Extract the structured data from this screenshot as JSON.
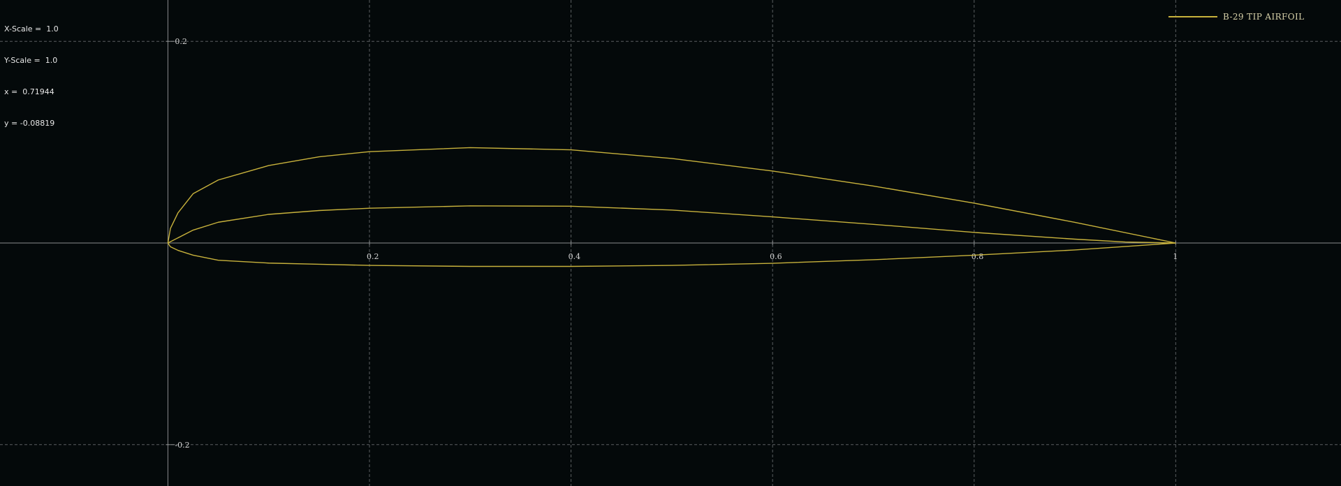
{
  "readout": {
    "x_scale_label": "X-Scale =",
    "x_scale_value": "1.0",
    "y_scale_label": "Y-Scale =",
    "y_scale_value": "1.0",
    "x_label": "x =",
    "x_value": "0.71944",
    "y_label": "y =",
    "y_value": "-0.08819"
  },
  "colors": {
    "background": "#04090a",
    "grid": "#5a5e60",
    "axis": "#8a8d8e",
    "series": "#c8b23c",
    "tick_text": "#d6d6d6"
  },
  "chart_data": {
    "type": "line",
    "title": "",
    "xlabel": "",
    "ylabel": "",
    "xlim": [
      -0.1666,
      1.164
    ],
    "ylim": [
      -0.241,
      0.241
    ],
    "grid": true,
    "legend_position": "top-right",
    "x_ticks": [
      {
        "value": 0.2,
        "label": "0.2"
      },
      {
        "value": 0.4,
        "label": "0.4"
      },
      {
        "value": 0.6,
        "label": "0.6"
      },
      {
        "value": 0.8,
        "label": "0.8"
      },
      {
        "value": 1.0,
        "label": "1"
      }
    ],
    "y_ticks": [
      {
        "value": 0.2,
        "label": "0.2"
      },
      {
        "value": -0.2,
        "label": "-0.2"
      }
    ],
    "series": [
      {
        "name": "B-29 TIP AIRFOIL",
        "color": "#c8b23c",
        "upper": [
          [
            1.0,
            0.0
          ],
          [
            0.9,
            0.0205
          ],
          [
            0.8,
            0.0395
          ],
          [
            0.7,
            0.0565
          ],
          [
            0.6,
            0.0714
          ],
          [
            0.5,
            0.0838
          ],
          [
            0.4,
            0.0924
          ],
          [
            0.3,
            0.0946
          ],
          [
            0.2,
            0.0906
          ],
          [
            0.15,
            0.0855
          ],
          [
            0.1,
            0.0768
          ],
          [
            0.05,
            0.0625
          ],
          [
            0.025,
            0.0489
          ],
          [
            0.01,
            0.0299
          ],
          [
            0.0025,
            0.0144
          ],
          [
            0.0,
            0.0
          ]
        ],
        "lower": [
          [
            0.0,
            0.0
          ],
          [
            0.0025,
            -0.0037
          ],
          [
            0.01,
            -0.0073
          ],
          [
            0.025,
            -0.0121
          ],
          [
            0.05,
            -0.0171
          ],
          [
            0.1,
            -0.0199
          ],
          [
            0.15,
            -0.0211
          ],
          [
            0.2,
            -0.0222
          ],
          [
            0.3,
            -0.0232
          ],
          [
            0.4,
            -0.0232
          ],
          [
            0.5,
            -0.0222
          ],
          [
            0.6,
            -0.0201
          ],
          [
            0.7,
            -0.0166
          ],
          [
            0.8,
            -0.0121
          ],
          [
            0.9,
            -0.0069
          ],
          [
            1.0,
            0.0
          ]
        ],
        "camber": [
          [
            0.0,
            0.0
          ],
          [
            0.025,
            0.0128
          ],
          [
            0.05,
            0.0206
          ],
          [
            0.1,
            0.0284
          ],
          [
            0.15,
            0.0322
          ],
          [
            0.2,
            0.0345
          ],
          [
            0.3,
            0.0368
          ],
          [
            0.4,
            0.0365
          ],
          [
            0.5,
            0.0327
          ],
          [
            0.6,
            0.0259
          ],
          [
            0.7,
            0.0185
          ],
          [
            0.8,
            0.0105
          ],
          [
            0.9,
            0.0038
          ],
          [
            0.95,
            0.001
          ],
          [
            1.0,
            0.0
          ]
        ]
      }
    ]
  }
}
